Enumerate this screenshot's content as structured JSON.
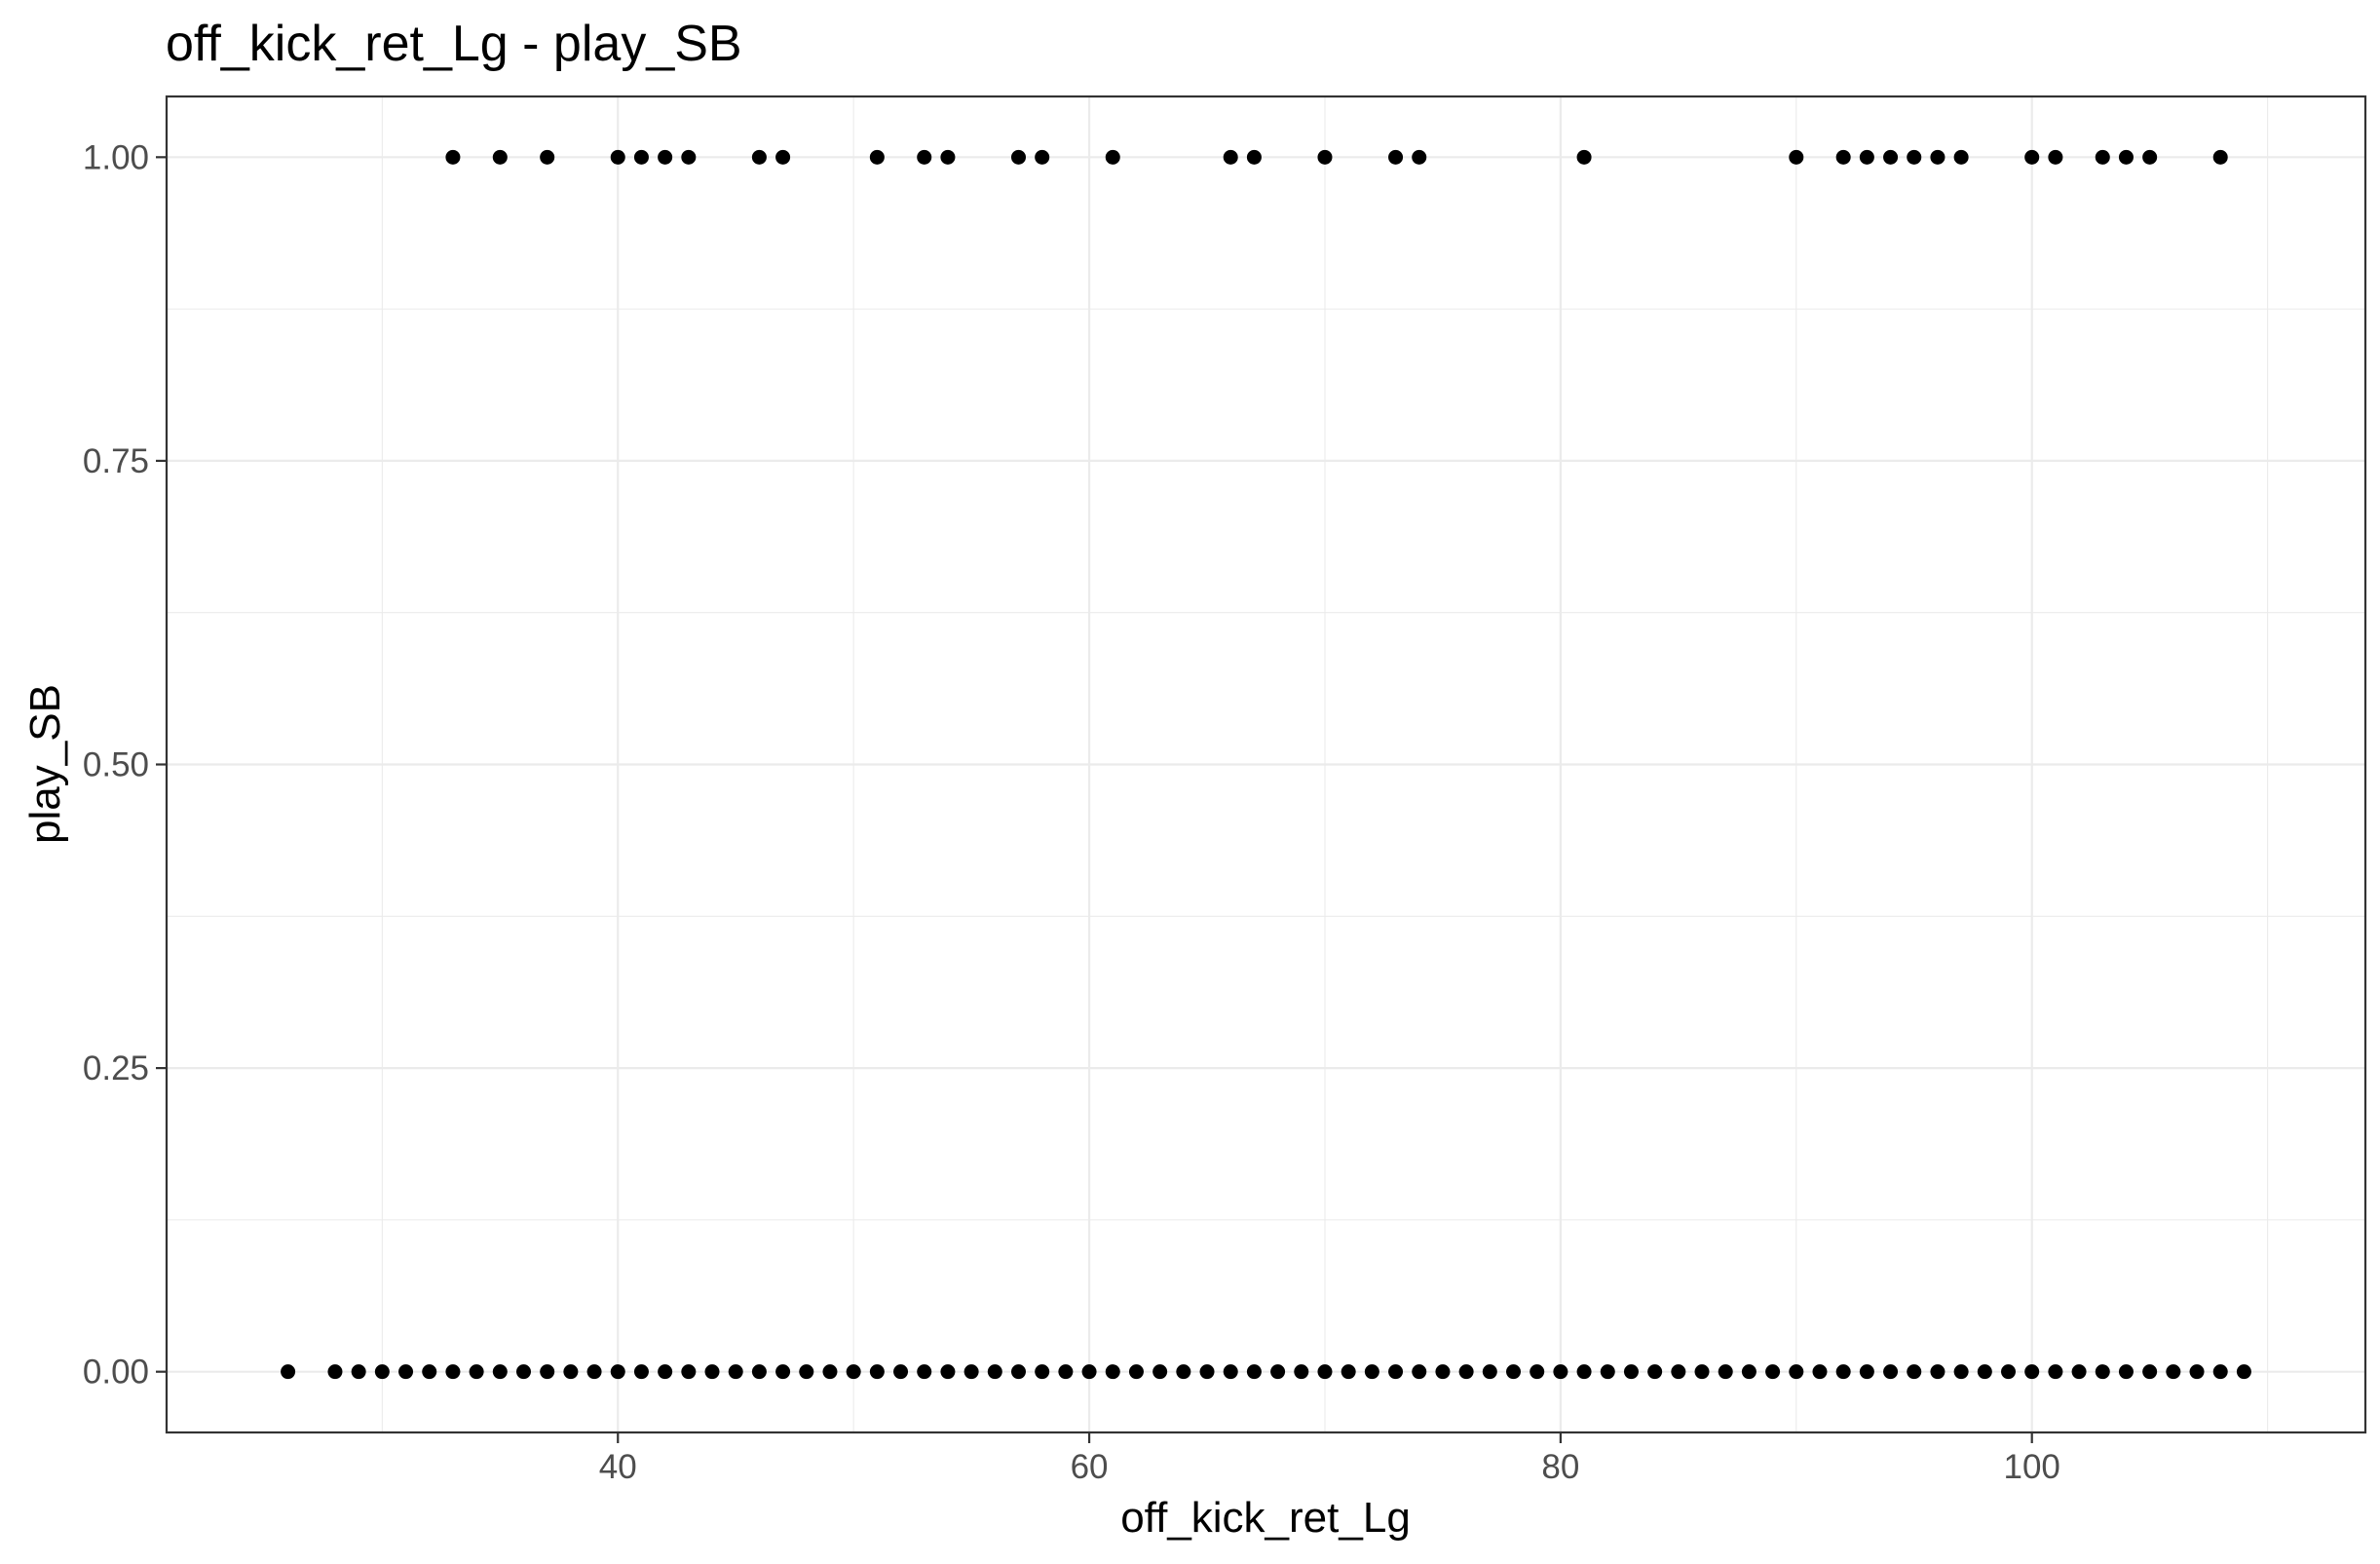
{
  "chart_data": {
    "type": "scatter",
    "title": "off_kick_ret_Lg - play_SB",
    "xlabel": "off_kick_ret_Lg",
    "ylabel": "play_SB",
    "xlim": [
      20.85,
      114.15
    ],
    "ylim": [
      -0.05,
      1.05
    ],
    "x_ticks": [
      40,
      60,
      80,
      100
    ],
    "x_tick_labels": [
      "40",
      "60",
      "80",
      "100"
    ],
    "x_minor_ticks": [
      30,
      50,
      70,
      90,
      110
    ],
    "y_ticks": [
      0,
      0.25,
      0.5,
      0.75,
      1
    ],
    "y_tick_labels": [
      "0.00",
      "0.25",
      "0.50",
      "0.75",
      "1.00"
    ],
    "y_minor_ticks": [
      0.125,
      0.375,
      0.625,
      0.875
    ],
    "grid": true,
    "theme": "bw",
    "point_color": "#000000",
    "series": [
      {
        "points": [
          {
            "x": 26,
            "y": 0
          },
          {
            "x": 28,
            "y": 0
          },
          {
            "x": 29,
            "y": 0
          },
          {
            "x": 30,
            "y": 0
          },
          {
            "x": 31,
            "y": 0
          },
          {
            "x": 32,
            "y": 0
          },
          {
            "x": 33,
            "y": 0
          },
          {
            "x": 34,
            "y": 0
          },
          {
            "x": 35,
            "y": 0
          },
          {
            "x": 36,
            "y": 0
          },
          {
            "x": 37,
            "y": 0
          },
          {
            "x": 38,
            "y": 0
          },
          {
            "x": 39,
            "y": 0
          },
          {
            "x": 40,
            "y": 0
          },
          {
            "x": 41,
            "y": 0
          },
          {
            "x": 42,
            "y": 0
          },
          {
            "x": 43,
            "y": 0
          },
          {
            "x": 44,
            "y": 0
          },
          {
            "x": 45,
            "y": 0
          },
          {
            "x": 46,
            "y": 0
          },
          {
            "x": 47,
            "y": 0
          },
          {
            "x": 48,
            "y": 0
          },
          {
            "x": 49,
            "y": 0
          },
          {
            "x": 50,
            "y": 0
          },
          {
            "x": 51,
            "y": 0
          },
          {
            "x": 52,
            "y": 0
          },
          {
            "x": 53,
            "y": 0
          },
          {
            "x": 54,
            "y": 0
          },
          {
            "x": 55,
            "y": 0
          },
          {
            "x": 56,
            "y": 0
          },
          {
            "x": 57,
            "y": 0
          },
          {
            "x": 58,
            "y": 0
          },
          {
            "x": 59,
            "y": 0
          },
          {
            "x": 60,
            "y": 0
          },
          {
            "x": 61,
            "y": 0
          },
          {
            "x": 62,
            "y": 0
          },
          {
            "x": 63,
            "y": 0
          },
          {
            "x": 64,
            "y": 0
          },
          {
            "x": 65,
            "y": 0
          },
          {
            "x": 66,
            "y": 0
          },
          {
            "x": 67,
            "y": 0
          },
          {
            "x": 68,
            "y": 0
          },
          {
            "x": 69,
            "y": 0
          },
          {
            "x": 70,
            "y": 0
          },
          {
            "x": 71,
            "y": 0
          },
          {
            "x": 72,
            "y": 0
          },
          {
            "x": 73,
            "y": 0
          },
          {
            "x": 74,
            "y": 0
          },
          {
            "x": 75,
            "y": 0
          },
          {
            "x": 76,
            "y": 0
          },
          {
            "x": 77,
            "y": 0
          },
          {
            "x": 78,
            "y": 0
          },
          {
            "x": 79,
            "y": 0
          },
          {
            "x": 80,
            "y": 0
          },
          {
            "x": 81,
            "y": 0
          },
          {
            "x": 82,
            "y": 0
          },
          {
            "x": 83,
            "y": 0
          },
          {
            "x": 84,
            "y": 0
          },
          {
            "x": 85,
            "y": 0
          },
          {
            "x": 86,
            "y": 0
          },
          {
            "x": 87,
            "y": 0
          },
          {
            "x": 88,
            "y": 0
          },
          {
            "x": 89,
            "y": 0
          },
          {
            "x": 90,
            "y": 0
          },
          {
            "x": 91,
            "y": 0
          },
          {
            "x": 92,
            "y": 0
          },
          {
            "x": 93,
            "y": 0
          },
          {
            "x": 94,
            "y": 0
          },
          {
            "x": 95,
            "y": 0
          },
          {
            "x": 96,
            "y": 0
          },
          {
            "x": 97,
            "y": 0
          },
          {
            "x": 98,
            "y": 0
          },
          {
            "x": 99,
            "y": 0
          },
          {
            "x": 100,
            "y": 0
          },
          {
            "x": 101,
            "y": 0
          },
          {
            "x": 102,
            "y": 0
          },
          {
            "x": 103,
            "y": 0
          },
          {
            "x": 104,
            "y": 0
          },
          {
            "x": 105,
            "y": 0
          },
          {
            "x": 106,
            "y": 0
          },
          {
            "x": 107,
            "y": 0
          },
          {
            "x": 108,
            "y": 0
          },
          {
            "x": 109,
            "y": 0
          },
          {
            "x": 33,
            "y": 1
          },
          {
            "x": 35,
            "y": 1
          },
          {
            "x": 37,
            "y": 1
          },
          {
            "x": 40,
            "y": 1
          },
          {
            "x": 41,
            "y": 1
          },
          {
            "x": 42,
            "y": 1
          },
          {
            "x": 43,
            "y": 1
          },
          {
            "x": 46,
            "y": 1
          },
          {
            "x": 47,
            "y": 1
          },
          {
            "x": 51,
            "y": 1
          },
          {
            "x": 53,
            "y": 1
          },
          {
            "x": 54,
            "y": 1
          },
          {
            "x": 57,
            "y": 1
          },
          {
            "x": 58,
            "y": 1
          },
          {
            "x": 61,
            "y": 1
          },
          {
            "x": 66,
            "y": 1
          },
          {
            "x": 67,
            "y": 1
          },
          {
            "x": 70,
            "y": 1
          },
          {
            "x": 73,
            "y": 1
          },
          {
            "x": 74,
            "y": 1
          },
          {
            "x": 81,
            "y": 1
          },
          {
            "x": 90,
            "y": 1
          },
          {
            "x": 92,
            "y": 1
          },
          {
            "x": 93,
            "y": 1
          },
          {
            "x": 94,
            "y": 1
          },
          {
            "x": 95,
            "y": 1
          },
          {
            "x": 96,
            "y": 1
          },
          {
            "x": 97,
            "y": 1
          },
          {
            "x": 100,
            "y": 1
          },
          {
            "x": 101,
            "y": 1
          },
          {
            "x": 103,
            "y": 1
          },
          {
            "x": 104,
            "y": 1
          },
          {
            "x": 105,
            "y": 1
          },
          {
            "x": 108,
            "y": 1
          }
        ]
      }
    ]
  }
}
